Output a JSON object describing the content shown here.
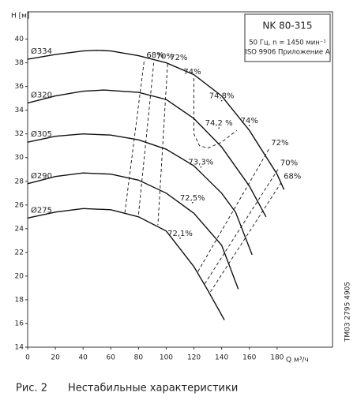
{
  "chart_data": {
    "type": "line",
    "title": "NK 80-315",
    "subtitle_lines": [
      "50 Гц, n = 1450 мин⁻¹",
      "ISO 9906 Приложение A"
    ],
    "y_label": "H [м]",
    "x_label": "Q м³/ч",
    "xlim": [
      0,
      220
    ],
    "ylim": [
      14,
      42.3
    ],
    "xticks": [
      0,
      20,
      40,
      60,
      80,
      100,
      120,
      140,
      160,
      180
    ],
    "yticks": [
      14,
      16,
      18,
      20,
      22,
      24,
      26,
      28,
      30,
      32,
      34,
      36,
      38,
      40
    ],
    "color": "#111111",
    "series": [
      {
        "name": "Ø334",
        "x": [
          0,
          20,
          40,
          50,
          60,
          80,
          100,
          120,
          140,
          160,
          180,
          185
        ],
        "values": [
          38.3,
          38.7,
          39,
          39.05,
          39,
          38.6,
          38,
          37,
          35.2,
          32.3,
          28.6,
          27.3
        ]
      },
      {
        "name": "Ø320",
        "x": [
          0,
          20,
          40,
          55,
          80,
          100,
          120,
          140,
          160,
          172
        ],
        "values": [
          34.6,
          35.2,
          35.6,
          35.7,
          35.5,
          34.9,
          33.3,
          30.9,
          27.6,
          25
        ]
      },
      {
        "name": "Ø305",
        "x": [
          0,
          20,
          40,
          60,
          80,
          100,
          120,
          140,
          150,
          162
        ],
        "values": [
          31.3,
          31.8,
          32,
          31.9,
          31.5,
          30.7,
          29.3,
          27,
          25.4,
          21.8
        ]
      },
      {
        "name": "Ø290",
        "x": [
          0,
          20,
          40,
          60,
          80,
          100,
          120,
          140,
          152
        ],
        "values": [
          27.8,
          28.4,
          28.7,
          28.6,
          28.1,
          27,
          25.3,
          22.6,
          18.9
        ]
      },
      {
        "name": "Ø275",
        "x": [
          0,
          20,
          40,
          60,
          80,
          100,
          120,
          130,
          142
        ],
        "values": [
          24.9,
          25.4,
          25.7,
          25.6,
          25,
          23.8,
          20.8,
          18.8,
          16.3
        ]
      }
    ],
    "efficiency_lines": [
      {
        "label": "68%",
        "x": [
          84,
          70
        ],
        "values": [
          38.1,
          25.2
        ]
      },
      {
        "label": "70%",
        "x": [
          91,
          80
        ],
        "values": [
          38,
          25.2
        ]
      },
      {
        "label": "72%",
        "x": [
          101,
          94
        ],
        "values": [
          37.9,
          24.3
        ]
      },
      {
        "label": "74%",
        "x": [
          120,
          120,
          124,
          130,
          140,
          151
        ],
        "values": [
          36.7,
          32,
          31,
          30.8,
          31.3,
          32.3
        ]
      },
      {
        "label": "72%",
        "x": [
          174,
          122.5
        ],
        "values": [
          30.7,
          20.3
        ]
      },
      {
        "label": "70%",
        "x": [
          180.6,
          127
        ],
        "values": [
          29,
          19.2
        ]
      },
      {
        "label": "68%",
        "x": [
          183,
          131
        ],
        "values": [
          27.9,
          18.5
        ]
      }
    ],
    "efficiency_points": [
      {
        "label": "74,8%",
        "x": 140,
        "y": 34.8
      },
      {
        "label": "74,2 %",
        "x": 138,
        "y": 32.5
      },
      {
        "label": "74%",
        "x": 160,
        "y": 32.7
      },
      {
        "label": "73,3%",
        "x": 125,
        "y": 29.2
      },
      {
        "label": "72,5%",
        "x": 119,
        "y": 26.2
      },
      {
        "label": "72,1%",
        "x": 110,
        "y": 23.2
      }
    ],
    "side_text": "TM03 2795 4905",
    "caption": [
      "Рис. 2",
      "Нестабильные характеристики"
    ]
  }
}
